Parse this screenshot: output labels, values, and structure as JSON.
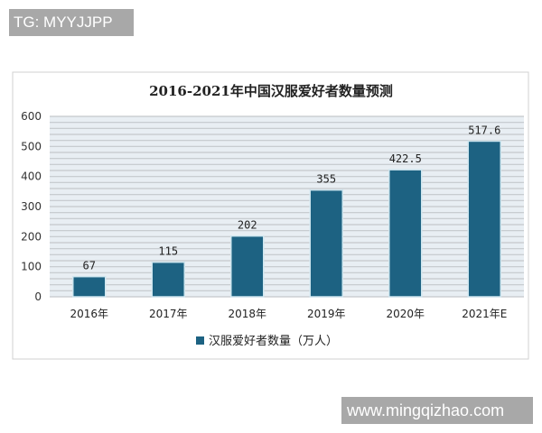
{
  "watermarks": {
    "top_left": "TG: MYYJJPP",
    "bottom_right": "www.mingqizhao.com"
  },
  "chart_data": {
    "type": "bar",
    "title": "2016-2021年中国汉服爱好者数量预测",
    "categories": [
      "2016年",
      "2017年",
      "2018年",
      "2019年",
      "2020年",
      "2021年E"
    ],
    "series": [
      {
        "name": "汉服爱好者数量（万人）",
        "values": [
          67,
          115,
          202,
          355,
          422.5,
          517.6
        ],
        "labels": [
          "67",
          "115",
          "202",
          "355",
          "422.5",
          "517.6"
        ]
      }
    ],
    "ylim": [
      0,
      600
    ],
    "yticks": [
      "0",
      "100",
      "200",
      "300",
      "400",
      "500",
      "600"
    ],
    "xlabel": "",
    "ylabel": "",
    "grid": true,
    "legend": "bottom",
    "colors": {
      "bar": "#1d6282",
      "bar_edge": "#cfe6ef",
      "grid_bg": "#e8eef3",
      "grid_line": "#c4c8cc"
    }
  }
}
